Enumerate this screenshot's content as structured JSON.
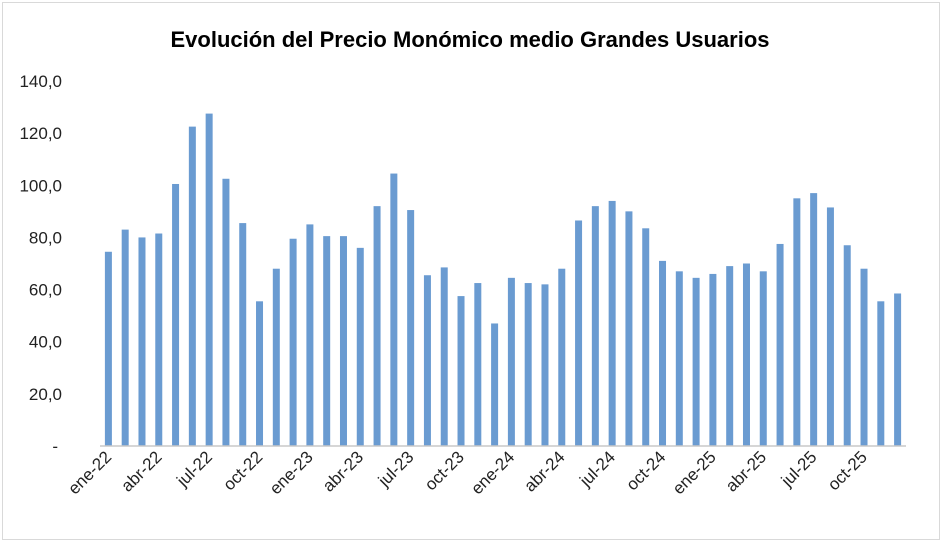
{
  "chart_data": {
    "type": "bar",
    "title": "Evolución del Precio Monómico medio Grandes Usuarios",
    "xlabel": "",
    "ylabel": "",
    "ylim": [
      0,
      140
    ],
    "yticks": [
      "-",
      "20,0",
      "40,0",
      "60,0",
      "80,0",
      "100,0",
      "120,0",
      "140,0"
    ],
    "grid": false,
    "color": "#6a9bd1",
    "categories": [
      "ene-22",
      "feb-22",
      "mar-22",
      "abr-22",
      "may-22",
      "jun-22",
      "jul-22",
      "ago-22",
      "sep-22",
      "oct-22",
      "nov-22",
      "dic-22",
      "ene-23",
      "feb-23",
      "mar-23",
      "abr-23",
      "may-23",
      "jun-23",
      "jul-23",
      "ago-23",
      "sep-23",
      "oct-23",
      "nov-23",
      "dic-23",
      "ene-24",
      "feb-24",
      "mar-24",
      "abr-24",
      "may-24",
      "jun-24",
      "jul-24",
      "ago-24",
      "sep-24",
      "oct-24",
      "nov-24",
      "dic-24",
      "ene-25",
      "feb-25",
      "mar-25",
      "abr-25",
      "may-25",
      "jun-25",
      "jul-25",
      "ago-25",
      "sep-25",
      "oct-25",
      "nov-25",
      "dic-25"
    ],
    "xticks": [
      "ene-22",
      "abr-22",
      "jul-22",
      "oct-22",
      "ene-23",
      "abr-23",
      "jul-23",
      "oct-23",
      "ene-24",
      "abr-24",
      "jul-24",
      "oct-24",
      "ene-25",
      "abr-25",
      "jul-25",
      "oct-25"
    ],
    "values": [
      74.5,
      83,
      80,
      81.5,
      100.5,
      122.5,
      127.5,
      102.5,
      85.5,
      55.5,
      68,
      79.5,
      85,
      80.5,
      80.5,
      76,
      92,
      104.5,
      90.5,
      65.5,
      68.5,
      57.5,
      62.5,
      47,
      64.5,
      62.5,
      62,
      68,
      86.5,
      92,
      94,
      90,
      83.5,
      71,
      67,
      64.5,
      66,
      69,
      70,
      67,
      77.5,
      95,
      97,
      91.5,
      77,
      68,
      55.5,
      58.5
    ]
  }
}
